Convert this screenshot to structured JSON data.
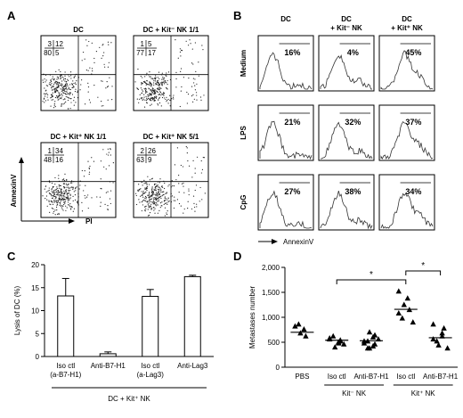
{
  "figure": {
    "panel_letters": [
      "A",
      "B",
      "C",
      "D"
    ]
  },
  "panel_a": {
    "plots": [
      {
        "title": "DC",
        "quadrants": {
          "ul": "3",
          "ur": "12",
          "ll": "80",
          "lr": "5"
        }
      },
      {
        "title": "DC + Kit⁻ NK 1/1",
        "quadrants": {
          "ul": "1",
          "ur": "5",
          "ll": "77",
          "lr": "17"
        }
      },
      {
        "title": "DC + Kit⁺ NK 1/1",
        "quadrants": {
          "ul": "1",
          "ur": "34",
          "ll": "48",
          "lr": "16"
        }
      },
      {
        "title": "DC + Kit⁺ NK 5/1",
        "quadrants": {
          "ul": "2",
          "ur": "26",
          "ll": "63",
          "lr": "9"
        }
      }
    ],
    "y_axis_label": "AnnexinV",
    "x_axis_label": "PI"
  },
  "panel_b": {
    "columns": [
      "DC",
      "DC\n+ Kit⁻ NK",
      "DC\n+ Kit⁺ NK"
    ],
    "rows": [
      "Medium",
      "LPS",
      "CpG"
    ],
    "percents": [
      [
        "16%",
        "4%",
        "45%"
      ],
      [
        "21%",
        "32%",
        "37%"
      ],
      [
        "27%",
        "38%",
        "34%"
      ]
    ],
    "x_axis_label": "AnnexinV"
  },
  "chart_data": [
    {
      "type": "bar",
      "panel": "C",
      "categories": [
        "Iso ctl\n(a-B7-H1)",
        "Anti-B7-H1",
        "Iso ctl\n(a-Lag3)",
        "Anti-Lag3"
      ],
      "values": [
        13.2,
        0.6,
        13.1,
        17.4
      ],
      "errors": [
        3.8,
        0.4,
        1.5,
        0.3
      ],
      "ylabel": "Lysis of DC (%)",
      "ylim": [
        0,
        20
      ],
      "yticks": [
        0,
        5,
        10,
        15,
        20
      ],
      "group_label": "DC + Kit⁺ NK"
    },
    {
      "type": "scatter",
      "panel": "D",
      "categories": [
        "PBS",
        "Iso ctl",
        "Anti-B7-H1",
        "Iso ctl",
        "Anti-B7-H1"
      ],
      "groups": [
        "",
        "Kit⁻ NK",
        "Kit⁻ NK",
        "Kit⁺ NK",
        "Kit⁺ NK"
      ],
      "group_labels": [
        "Kit⁻ NK",
        "Kit⁺ NK"
      ],
      "points": [
        [
          820,
          760,
          620,
          860,
          680
        ],
        [
          560,
          480,
          520,
          620,
          400,
          460,
          580,
          500,
          540
        ],
        [
          520,
          600,
          460,
          380,
          700,
          560,
          480,
          420,
          640,
          520,
          380
        ],
        [
          1520,
          1380,
          1150,
          980,
          1250,
          900,
          1080
        ],
        [
          860,
          680,
          780,
          520,
          440,
          380,
          560,
          620
        ]
      ],
      "means": [
        700,
        540,
        530,
        1160,
        590
      ],
      "ylabel": "Metastases number",
      "ylim": [
        0,
        2000
      ],
      "yticks": [
        "0",
        "500",
        "1,000",
        "1,500",
        "2,000"
      ],
      "significance": [
        {
          "from": 1,
          "to": 3,
          "label": "*"
        },
        {
          "from": 3,
          "to": 4,
          "label": "*"
        }
      ]
    }
  ]
}
